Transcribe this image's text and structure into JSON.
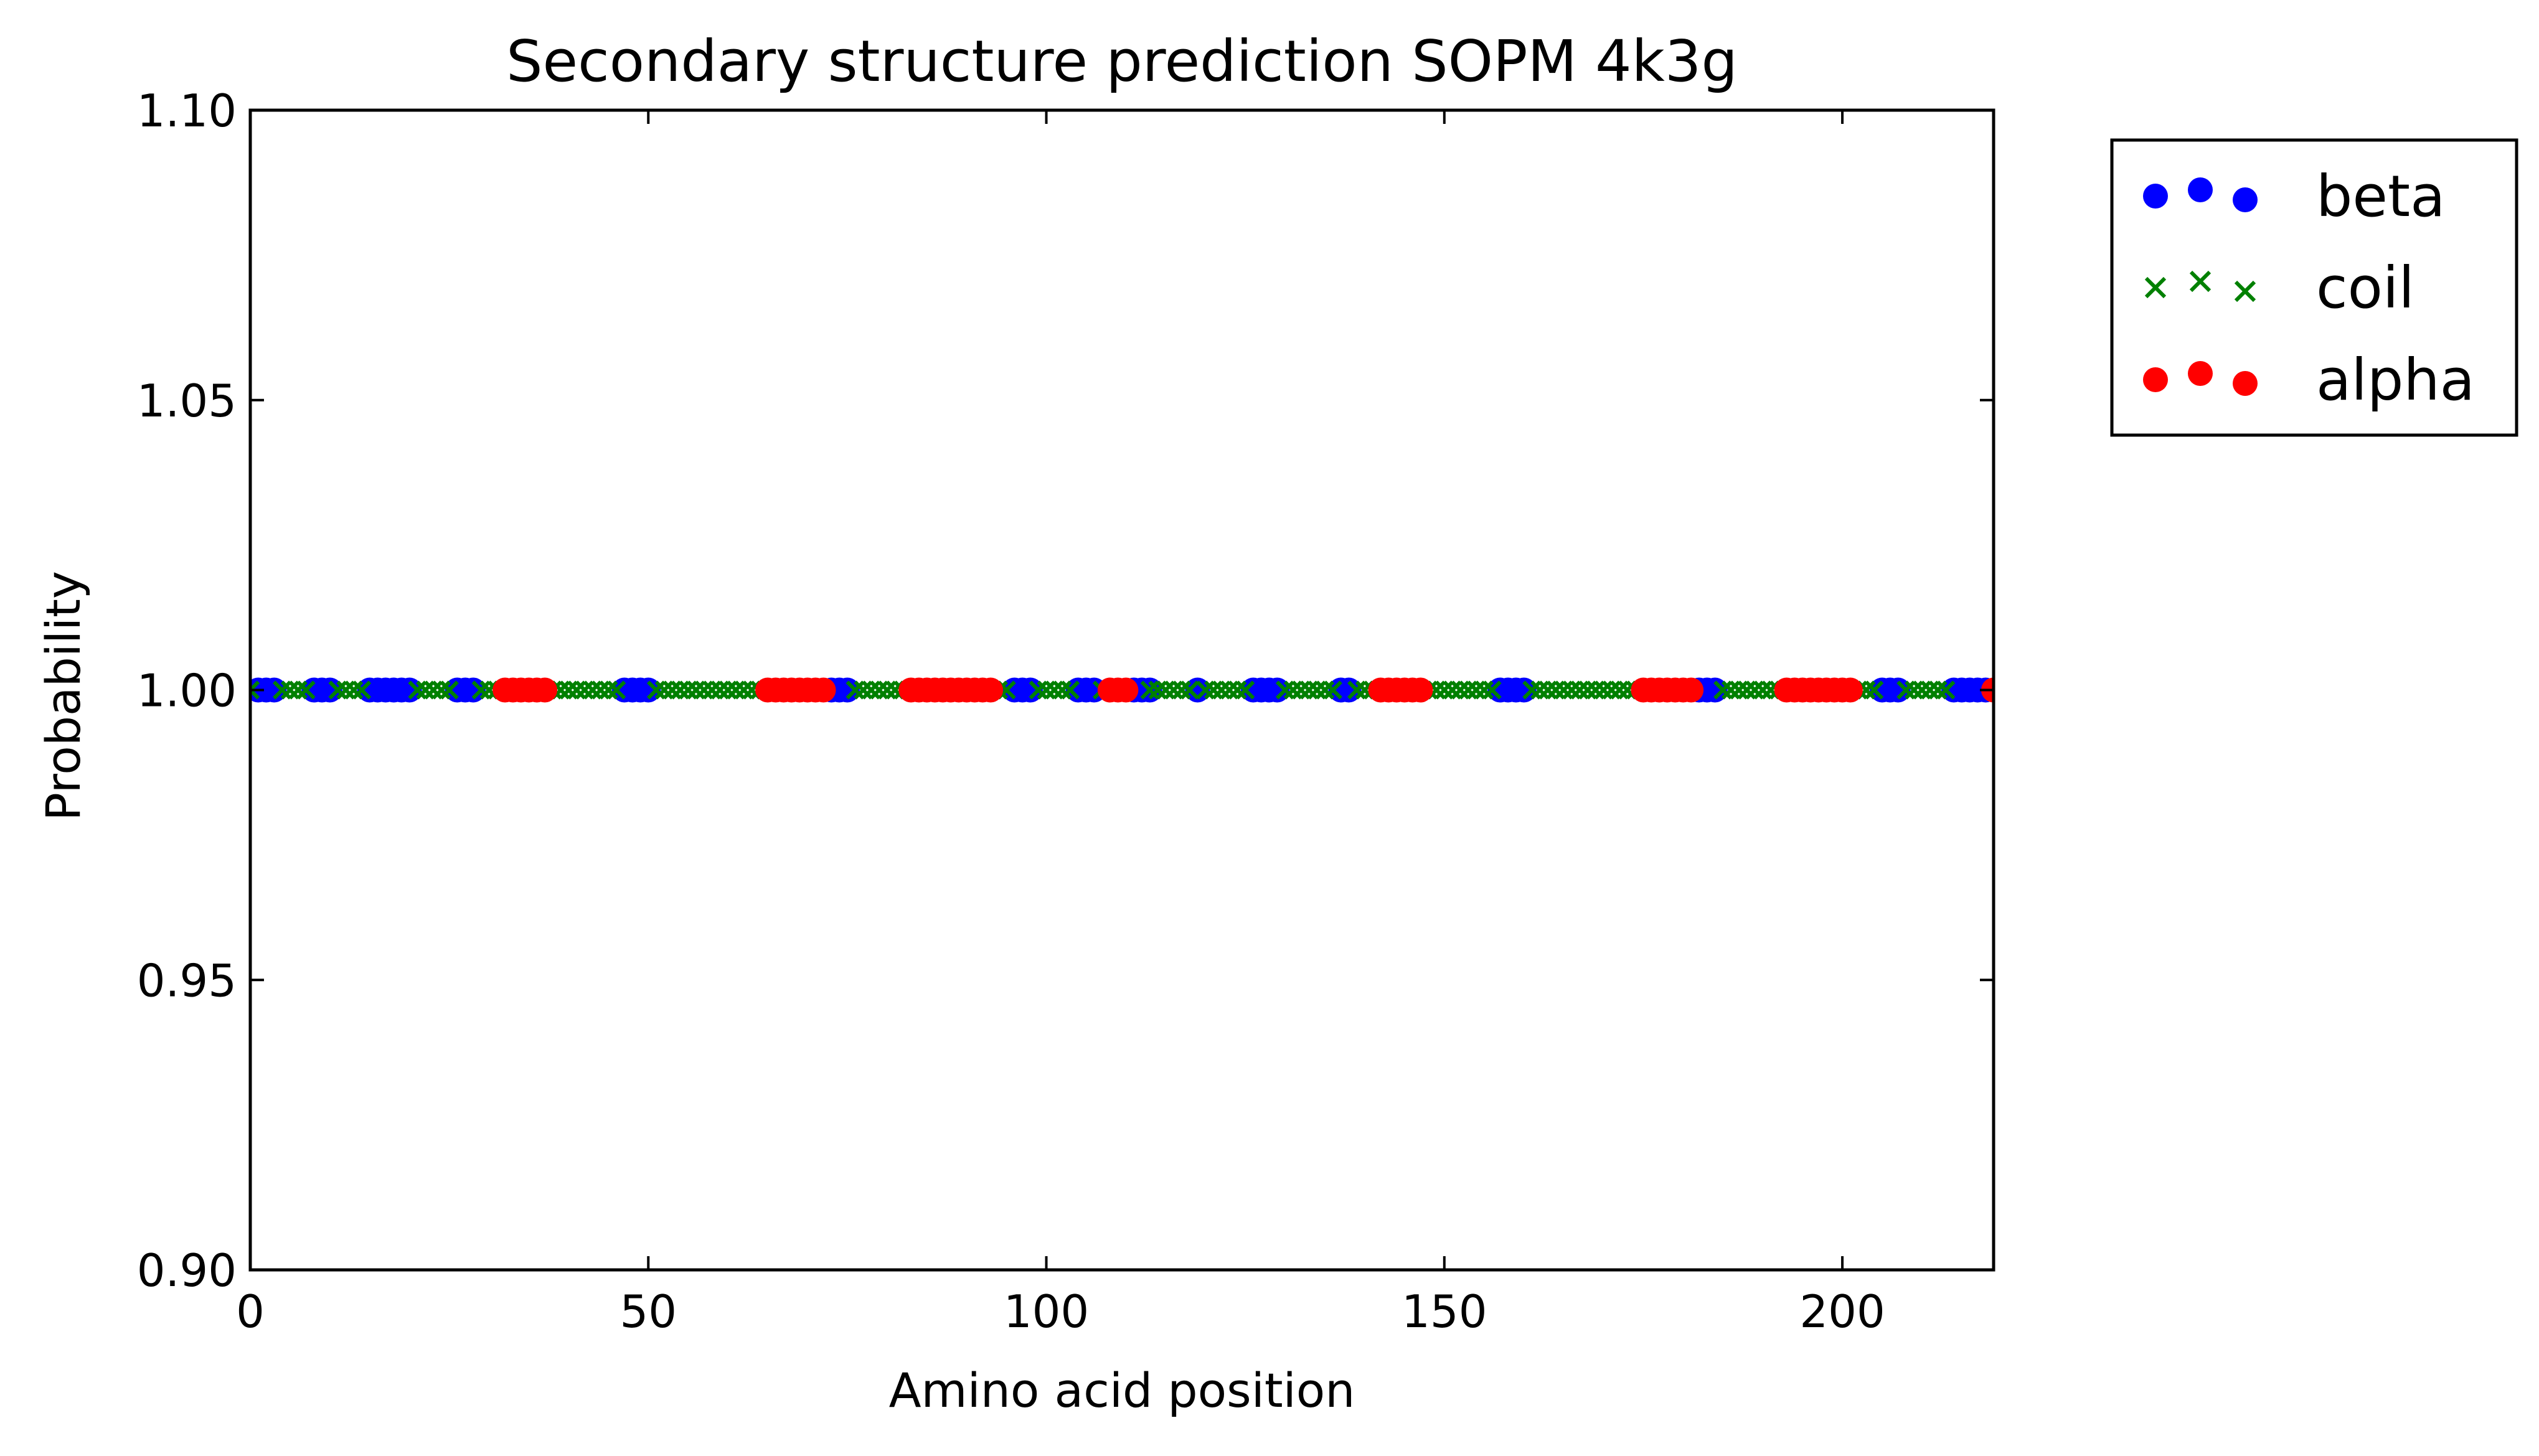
{
  "chart_data": {
    "type": "scatter",
    "title": "Secondary structure prediction SOPM 4k3g",
    "xlabel": "Amino acid position",
    "ylabel": "Probability",
    "xlim": [
      0,
      219
    ],
    "ylim": [
      0.9,
      1.1
    ],
    "xticks": [
      0,
      50,
      100,
      150,
      200
    ],
    "yticks": [
      0.9,
      0.95,
      1.0,
      1.05,
      1.1
    ],
    "xtick_labels": [
      "0",
      "50",
      "100",
      "150",
      "200"
    ],
    "ytick_labels": [
      "0.90",
      "0.95",
      "1.00",
      "1.05",
      "1.10"
    ],
    "grid": false,
    "legend_position": "outside-top-right",
    "series": [
      {
        "name": "beta",
        "marker": "circle",
        "color": "#0000ff",
        "x": [
          1,
          2,
          3,
          8,
          9,
          10,
          15,
          16,
          17,
          18,
          19,
          20,
          26,
          27,
          28,
          47,
          48,
          49,
          50,
          73,
          74,
          75,
          96,
          97,
          98,
          104,
          105,
          106,
          111,
          112,
          113,
          119,
          126,
          127,
          128,
          129,
          137,
          138,
          157,
          158,
          159,
          160,
          182,
          183,
          184,
          205,
          206,
          207,
          214,
          215,
          216,
          217,
          218
        ],
        "y": 1.0
      },
      {
        "name": "coil",
        "marker": "x",
        "color": "#008000",
        "x": [
          0,
          4,
          5,
          6,
          7,
          11,
          12,
          13,
          14,
          21,
          22,
          23,
          24,
          25,
          29,
          30,
          31,
          38,
          39,
          40,
          41,
          42,
          43,
          44,
          45,
          46,
          51,
          52,
          53,
          54,
          55,
          56,
          57,
          58,
          59,
          60,
          61,
          62,
          63,
          64,
          76,
          77,
          78,
          79,
          80,
          81,
          82,
          94,
          95,
          99,
          100,
          101,
          102,
          103,
          107,
          113,
          114,
          115,
          116,
          117,
          118,
          120,
          121,
          122,
          123,
          124,
          125,
          130,
          131,
          132,
          133,
          134,
          135,
          136,
          139,
          140,
          141,
          148,
          149,
          150,
          151,
          152,
          153,
          154,
          155,
          156,
          161,
          162,
          163,
          164,
          165,
          166,
          167,
          168,
          169,
          170,
          171,
          172,
          173,
          174,
          185,
          186,
          187,
          188,
          189,
          190,
          191,
          192,
          202,
          203,
          204,
          208,
          209,
          210,
          211,
          212,
          213
        ],
        "y": 1.0
      },
      {
        "name": "alpha",
        "marker": "circle",
        "color": "#ff0000",
        "x": [
          32,
          33,
          34,
          35,
          36,
          37,
          65,
          66,
          67,
          68,
          69,
          70,
          71,
          72,
          83,
          84,
          85,
          86,
          87,
          88,
          89,
          90,
          91,
          92,
          93,
          108,
          109,
          110,
          142,
          143,
          144,
          145,
          146,
          147,
          175,
          176,
          177,
          178,
          179,
          180,
          181,
          193,
          194,
          195,
          196,
          197,
          198,
          199,
          200,
          201,
          219
        ],
        "y": 1.0
      }
    ]
  }
}
